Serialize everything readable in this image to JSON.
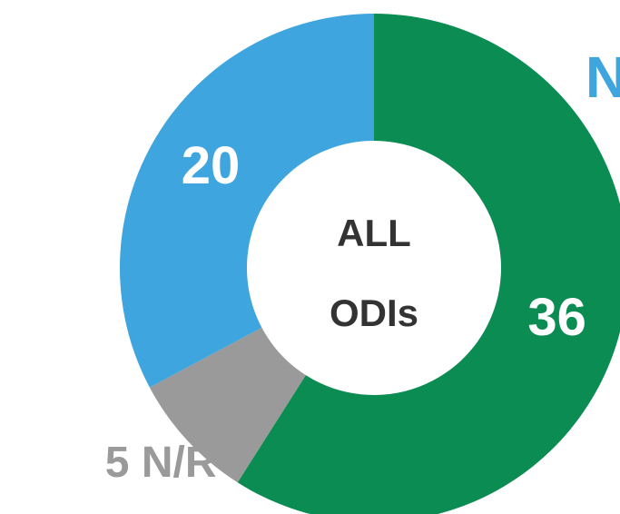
{
  "chart_data": {
    "type": "donut",
    "title": "N",
    "center_label": [
      "ALL",
      "ODIs"
    ],
    "values": [
      36,
      5,
      20
    ],
    "value_labels": [
      "36",
      "5 N/R",
      "20"
    ],
    "colors": [
      "#0b8c52",
      "#9a9a9a",
      "#3fa5de"
    ]
  }
}
